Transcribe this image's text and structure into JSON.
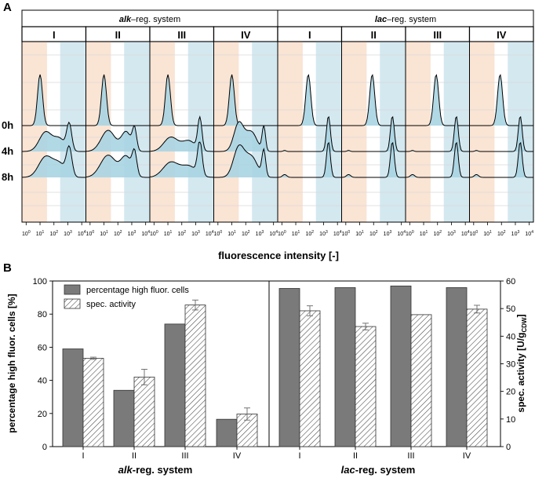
{
  "panel_a": {
    "label": "A",
    "chart_data": {
      "type": "histogram-overlay",
      "systems": [
        {
          "name": "alk–reg. system",
          "name_prefix": "alk",
          "name_suffix": "–reg. system",
          "conditions": [
            "I",
            "II",
            "III",
            "IV"
          ]
        },
        {
          "name": "lac–reg. system",
          "name_prefix": "lac",
          "name_suffix": "–reg. system",
          "conditions": [
            "I",
            "II",
            "III",
            "IV"
          ]
        }
      ],
      "timepoints": [
        "0h",
        "4h",
        "8h"
      ],
      "x_scale": "log",
      "x_ticks": [
        {
          "base": "10",
          "exp": "0"
        },
        {
          "base": "10",
          "exp": "1"
        },
        {
          "base": "10",
          "exp": "2"
        },
        {
          "base": "10",
          "exp": "3"
        },
        {
          "base": "10",
          "exp": "4"
        }
      ],
      "x_range_log10": [
        -0.3,
        4.3
      ],
      "low_gate_log10": [
        -0.3,
        1.5
      ],
      "high_gate_log10": [
        2.45,
        4.3
      ],
      "xlabel": "fluorescence intensity [-]"
    }
  },
  "panel_b": {
    "label": "B",
    "chart_data": {
      "type": "bar",
      "groups": [
        "alk-reg. system",
        "lac-reg. system"
      ],
      "group_labels": [
        {
          "prefix": "alk",
          "suffix": "-reg. system"
        },
        {
          "prefix": "lac",
          "suffix": "-reg. system"
        }
      ],
      "categories": [
        "I",
        "II",
        "III",
        "IV",
        "I",
        "II",
        "III",
        "IV"
      ],
      "series": [
        {
          "name": "percentage high fluor. cells",
          "axis": "left",
          "values": [
            59,
            34,
            74,
            16.5,
            95.5,
            96,
            97,
            96
          ],
          "errors": [
            0,
            0,
            0,
            0,
            0,
            0,
            0,
            0
          ],
          "color": "#7a7a7a"
        },
        {
          "name": "spec. activity",
          "axis": "right",
          "values": [
            32,
            25.2,
            51.3,
            11.8,
            49.2,
            43.5,
            47.8,
            49.8
          ],
          "errors": [
            0.4,
            2.8,
            1.8,
            2.2,
            1.8,
            1.2,
            0,
            1.4
          ],
          "pattern": "hatched"
        }
      ],
      "y_left": {
        "label": "percentage high fluor. cells [%]",
        "range": [
          0,
          100
        ],
        "ticks": [
          "0",
          "20",
          "40",
          "60",
          "80",
          "100"
        ]
      },
      "y_right": {
        "label_main": "spec. activity [U/g",
        "label_sub": "CDW",
        "label_end": "]",
        "range": [
          0,
          60
        ],
        "ticks": [
          "0",
          "10",
          "20",
          "30",
          "40",
          "50",
          "60"
        ]
      }
    }
  }
}
